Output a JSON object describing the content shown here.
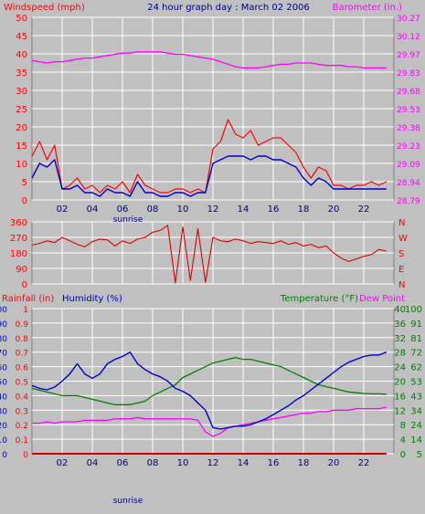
{
  "header": {
    "windspeed_label": "Windspeed (mph)",
    "title": "24 hour graph day : March 02 2006",
    "barometer_label": "Barometer (in.)"
  },
  "bottom_header": {
    "rainfall_label": "Rainfall (in)",
    "humidity_label": "Humidity (%)",
    "temperature_label": "Temperature (°F)",
    "dewpoint_label": "Dew Point"
  },
  "sunrise_label": "sunrise",
  "colors": {
    "wind_gust": "#ff0000",
    "wind_avg": "#0000cc",
    "barometer": "#ff00ff",
    "direction": "#dd0000",
    "humidity": "#0000cc",
    "temperature": "#008000",
    "dewpoint": "#ff00ff",
    "rain": "#cc0000",
    "plot_bg": "#c0c0c0",
    "grid": "#ffffff"
  },
  "chart_data": [
    {
      "type": "line",
      "x": [
        0,
        0.5,
        1,
        1.5,
        2,
        2.5,
        3,
        3.5,
        4,
        4.5,
        5,
        5.5,
        6,
        6.5,
        7,
        7.5,
        8,
        8.5,
        9,
        9.5,
        10,
        10.5,
        11,
        11.5,
        12,
        12.5,
        13,
        13.5,
        14,
        14.5,
        15,
        15.5,
        16,
        16.5,
        17,
        17.5,
        18,
        18.5,
        19,
        19.5,
        20,
        20.5,
        21,
        21.5,
        22,
        22.5,
        23,
        23.5
      ],
      "x_ticks": [
        "02",
        "04",
        "06",
        "08",
        "10",
        "12",
        "14",
        "16",
        "18",
        "20",
        "22"
      ],
      "y_left_ticks": [
        "0",
        "5",
        "10",
        "15",
        "20",
        "25",
        "30",
        "35",
        "40",
        "45",
        "50"
      ],
      "y_right_ticks": [
        "28.79",
        "28.94",
        "29.09",
        "29.23",
        "29.38",
        "29.53",
        "29.68",
        "29.83",
        "29.97",
        "30.12",
        "30.27"
      ],
      "ylim_left": [
        0,
        50
      ],
      "ylim_right": [
        28.79,
        30.27
      ],
      "series": [
        {
          "values": [
            12,
            16,
            11,
            15,
            3,
            4,
            6,
            3,
            4,
            2,
            4,
            3,
            5,
            2,
            7,
            4,
            3,
            2,
            2,
            3,
            3,
            2,
            3,
            2,
            14,
            16,
            22,
            18,
            17,
            19,
            15,
            16,
            17,
            17,
            15,
            13,
            9,
            6,
            9,
            8,
            4,
            4,
            3,
            4,
            4,
            5,
            4,
            5
          ]
        },
        {
          "values": [
            6,
            10,
            9,
            11,
            3,
            3,
            4,
            2,
            2,
            1,
            3,
            2,
            2,
            1,
            5,
            2,
            2,
            1,
            1,
            2,
            2,
            1,
            2,
            2,
            10,
            11,
            12,
            12,
            12,
            11,
            12,
            12,
            11,
            11,
            10,
            9,
            6,
            4,
            6,
            5,
            3,
            3,
            3,
            3,
            3,
            3,
            3,
            3
          ]
        },
        {
          "values": [
            29.92,
            29.91,
            29.9,
            29.91,
            29.91,
            29.92,
            29.93,
            29.94,
            29.94,
            29.95,
            29.96,
            29.97,
            29.98,
            29.98,
            29.99,
            29.99,
            29.99,
            29.99,
            29.98,
            29.97,
            29.97,
            29.96,
            29.95,
            29.94,
            29.93,
            29.91,
            29.89,
            29.87,
            29.86,
            29.86,
            29.86,
            29.87,
            29.88,
            29.89,
            29.89,
            29.9,
            29.9,
            29.9,
            29.89,
            29.88,
            29.88,
            29.88,
            29.87,
            29.87,
            29.86,
            29.86,
            29.86,
            29.86
          ]
        }
      ]
    },
    {
      "type": "line",
      "x": [
        0,
        0.5,
        1,
        1.5,
        2,
        2.5,
        3,
        3.5,
        4,
        4.5,
        5,
        5.5,
        6,
        6.5,
        7,
        7.5,
        8,
        8.5,
        9,
        9.5,
        10,
        10.5,
        11,
        11.5,
        12,
        12.5,
        13,
        13.5,
        14,
        14.5,
        15,
        15.5,
        16,
        16.5,
        17,
        17.5,
        18,
        18.5,
        19,
        19.5,
        20,
        20.5,
        21,
        21.5,
        22,
        22.5,
        23,
        23.5
      ],
      "x_ticks": [
        "02",
        "04",
        "06",
        "08",
        "10",
        "12",
        "14",
        "16",
        "18",
        "20",
        "22"
      ],
      "y_left_ticks": [
        "0",
        "90",
        "180",
        "270",
        "360"
      ],
      "y_right_ticks": [
        "N",
        "E",
        "S",
        "W",
        "N"
      ],
      "ylim": [
        0,
        360
      ],
      "series": [
        {
          "values": [
            225,
            235,
            250,
            240,
            270,
            250,
            230,
            215,
            245,
            260,
            255,
            220,
            250,
            235,
            260,
            270,
            300,
            310,
            340,
            5,
            330,
            20,
            320,
            10,
            270,
            250,
            245,
            260,
            250,
            235,
            245,
            240,
            235,
            250,
            230,
            240,
            220,
            230,
            210,
            220,
            180,
            150,
            130,
            145,
            160,
            170,
            200,
            190
          ]
        }
      ]
    },
    {
      "type": "line",
      "x": [
        0,
        0.5,
        1,
        1.5,
        2,
        2.5,
        3,
        3.5,
        4,
        4.5,
        5,
        5.5,
        6,
        6.5,
        7,
        7.5,
        8,
        8.5,
        9,
        9.5,
        10,
        10.5,
        11,
        11.5,
        12,
        12.5,
        13,
        13.5,
        14,
        14.5,
        15,
        15.5,
        16,
        16.5,
        17,
        17.5,
        18,
        18.5,
        19,
        19.5,
        20,
        20.5,
        21,
        21.5,
        22,
        22.5,
        23,
        23.5
      ],
      "x_ticks": [
        "02",
        "04",
        "06",
        "08",
        "10",
        "12",
        "14",
        "16",
        "18",
        "20",
        "22"
      ],
      "y_rain_ticks": [
        "0",
        "0.1",
        "0.2",
        "0.3",
        "0.4",
        "0.5",
        "0.6",
        "0.7",
        "0.8",
        "0.9",
        "1"
      ],
      "y_humidity_ticks": [
        "0",
        "10",
        "20",
        "30",
        "40",
        "50",
        "60",
        "70",
        "80",
        "90",
        "100"
      ],
      "y_temp_ticks": [
        "0",
        "4",
        "8",
        "12",
        "16",
        "20",
        "24",
        "28",
        "32",
        "36",
        "40"
      ],
      "y_dew_ticks": [
        "5",
        "14",
        "24",
        "34",
        "43",
        "53",
        "62",
        "72",
        "81",
        "91",
        "100"
      ],
      "ylim_humidity": [
        0,
        100
      ],
      "ylim_temp": [
        0,
        40
      ],
      "series": [
        {
          "values": [
            47,
            45,
            44,
            46,
            50,
            55,
            62,
            55,
            52,
            55,
            62,
            65,
            67,
            70,
            62,
            58,
            55,
            53,
            50,
            45,
            43,
            40,
            35,
            30,
            18,
            17,
            18,
            19,
            19,
            20,
            22,
            24,
            27,
            30,
            33,
            37,
            40,
            44,
            48,
            52,
            56,
            60,
            63,
            65,
            67,
            68,
            68,
            70
          ]
        },
        {
          "values": [
            18,
            17.5,
            17,
            16.5,
            16,
            16,
            16,
            15.5,
            15,
            14.5,
            14,
            13.5,
            13.5,
            13.5,
            14,
            14.5,
            16,
            17,
            18,
            19,
            21,
            22,
            23,
            24,
            25,
            25.5,
            26,
            26.5,
            26,
            26,
            25.5,
            25,
            24.5,
            24,
            23,
            22,
            21,
            20,
            19,
            18.5,
            18,
            17.5,
            17,
            16.8,
            16.6,
            16.5,
            16.5,
            16.4
          ]
        },
        {
          "values": [
            21,
            21,
            22,
            21,
            22,
            22,
            22,
            23,
            23,
            23,
            23,
            24,
            24,
            24,
            25,
            24,
            24,
            24,
            24,
            24,
            24,
            24,
            23,
            15,
            12,
            14,
            18,
            19,
            20,
            21,
            22,
            23,
            24,
            25,
            26,
            27,
            28,
            28,
            29,
            29,
            30,
            30,
            30,
            31,
            31,
            31,
            31,
            32
          ]
        },
        {
          "values": [
            0,
            0,
            0,
            0,
            0,
            0,
            0,
            0,
            0,
            0,
            0,
            0,
            0,
            0,
            0,
            0,
            0,
            0,
            0,
            0,
            0,
            0,
            0,
            0,
            0,
            0,
            0,
            0,
            0,
            0,
            0,
            0,
            0,
            0,
            0,
            0,
            0,
            0,
            0,
            0,
            0,
            0,
            0,
            0,
            0,
            0,
            0,
            0
          ]
        }
      ]
    }
  ]
}
